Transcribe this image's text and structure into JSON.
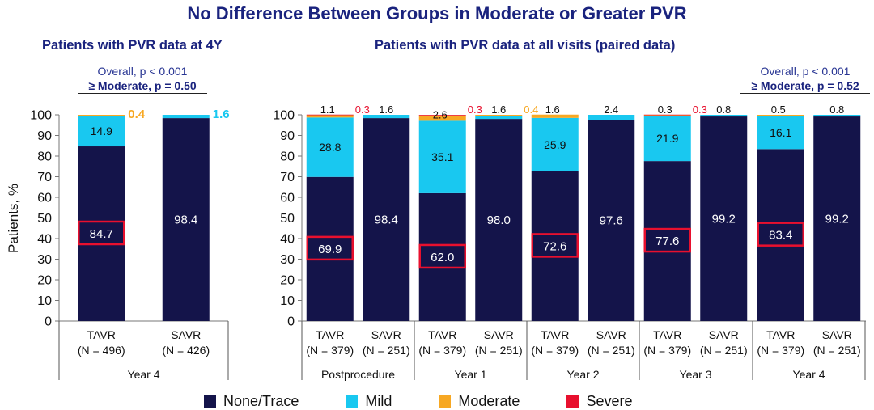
{
  "title": "No Difference Between Groups in Moderate or Greater PVR",
  "colors": {
    "none_trace": "#14144a",
    "mild": "#19c8f0",
    "moderate": "#f7a823",
    "severe": "#e8102e",
    "title": "#1a237e"
  },
  "panel_left": {
    "subtitle": "Patients with PVR data at 4Y",
    "stat_overall": "Overall, p < 0.001",
    "stat_moderate": "≥ Moderate, p = 0.50"
  },
  "panel_right": {
    "subtitle": "Patients with PVR data at all visits (paired data)",
    "stat_overall": "Overall, p < 0.001",
    "stat_moderate": "≥ Moderate, p = 0.52"
  },
  "legend": [
    "None/Trace",
    "Mild",
    "Moderate",
    "Severe"
  ],
  "chart_data": {
    "type": "bar",
    "stacked": true,
    "ylabel": "Patients, %",
    "ylim": [
      0,
      100
    ],
    "yticks": [
      0,
      10,
      20,
      30,
      40,
      50,
      60,
      70,
      80,
      90,
      100
    ],
    "series_order": [
      "None/Trace",
      "Mild",
      "Moderate",
      "Severe"
    ],
    "highlight": "TAVR None/Trace values are boxed in red",
    "groups": [
      {
        "label": "Year 4",
        "bars": [
          {
            "label": "TAVR",
            "n": "(N = 496)",
            "values": [
              84.7,
              14.9,
              0.4,
              0
            ],
            "labels": [
              "84.7",
              "14.9",
              "0.4",
              ""
            ]
          },
          {
            "label": "SAVR",
            "n": "(N = 426)",
            "values": [
              98.4,
              1.6,
              0,
              0
            ],
            "labels": [
              "98.4",
              "1.6",
              "",
              ""
            ]
          }
        ]
      },
      {
        "label": "Postprocedure",
        "bars": [
          {
            "label": "TAVR",
            "n": "(N = 379)",
            "values": [
              69.9,
              28.8,
              1.1,
              0.3
            ],
            "labels": [
              "69.9",
              "28.8",
              "1.1",
              "0.3"
            ]
          },
          {
            "label": "SAVR",
            "n": "(N = 251)",
            "values": [
              98.4,
              1.6,
              0,
              0
            ],
            "labels": [
              "98.4",
              "1.6",
              "",
              ""
            ]
          }
        ]
      },
      {
        "label": "Year 1",
        "bars": [
          {
            "label": "TAVR",
            "n": "(N = 379)",
            "values": [
              62.0,
              35.1,
              2.6,
              0.3
            ],
            "labels": [
              "62.0",
              "35.1",
              "2.6",
              "0.3"
            ]
          },
          {
            "label": "SAVR",
            "n": "(N = 251)",
            "values": [
              98.0,
              1.6,
              0.4,
              0
            ],
            "labels": [
              "98.0",
              "1.6",
              "0.4",
              ""
            ]
          }
        ]
      },
      {
        "label": "Year 2",
        "bars": [
          {
            "label": "TAVR",
            "n": "(N = 379)",
            "values": [
              72.6,
              25.9,
              1.6,
              0
            ],
            "labels": [
              "72.6",
              "25.9",
              "1.6",
              ""
            ]
          },
          {
            "label": "SAVR",
            "n": "(N = 251)",
            "values": [
              97.6,
              2.4,
              0,
              0
            ],
            "labels": [
              "97.6",
              "2.4",
              "",
              ""
            ]
          }
        ]
      },
      {
        "label": "Year 3",
        "bars": [
          {
            "label": "TAVR",
            "n": "(N = 379)",
            "values": [
              77.6,
              21.9,
              0.3,
              0.3
            ],
            "labels": [
              "77.6",
              "21.9",
              "0.3",
              "0.3"
            ]
          },
          {
            "label": "SAVR",
            "n": "(N = 251)",
            "values": [
              99.2,
              0.8,
              0,
              0
            ],
            "labels": [
              "99.2",
              "0.8",
              "",
              ""
            ]
          }
        ]
      },
      {
        "label": "Year 4",
        "bars": [
          {
            "label": "TAVR",
            "n": "(N = 379)",
            "values": [
              83.4,
              16.1,
              0.5,
              0
            ],
            "labels": [
              "83.4",
              "16.1",
              "0.5",
              ""
            ]
          },
          {
            "label": "SAVR",
            "n": "(N = 251)",
            "values": [
              99.2,
              0.8,
              0,
              0
            ],
            "labels": [
              "99.2",
              "0.8",
              "",
              ""
            ]
          }
        ]
      }
    ]
  }
}
